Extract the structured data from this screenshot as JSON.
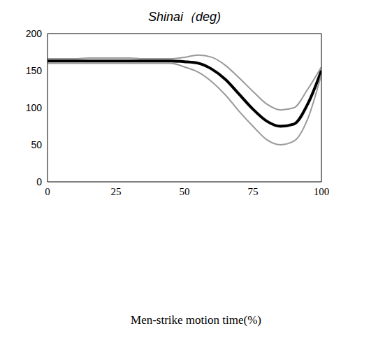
{
  "chart_data": {
    "type": "line",
    "title": "Shinai（deg)",
    "x_label": "Men-strike motion time(%)",
    "x": [
      0,
      5,
      10,
      15,
      20,
      25,
      30,
      35,
      40,
      45,
      50,
      55,
      60,
      65,
      70,
      75,
      80,
      85,
      90,
      95,
      100
    ],
    "series": [
      {
        "color": "#999999",
        "line_style": "solid",
        "values": [
          166,
          166,
          166,
          167,
          167,
          167,
          167,
          166,
          166,
          166,
          168,
          171,
          168,
          157,
          140,
          122,
          105,
          97,
          100,
          125,
          155
        ]
      },
      {
        "color": "#000000",
        "line_style": "solid",
        "values": [
          163,
          163,
          163,
          163,
          163,
          163,
          163,
          163,
          163,
          163,
          162,
          160,
          152,
          138,
          118,
          98,
          82,
          75,
          78,
          105,
          150
        ]
      },
      {
        "color": "#999999",
        "line_style": "solid",
        "values": [
          160,
          160,
          160,
          160,
          160,
          160,
          160,
          160,
          160,
          160,
          155,
          148,
          135,
          117,
          95,
          75,
          57,
          50,
          55,
          85,
          145
        ]
      }
    ],
    "xlim": [
      0,
      100
    ],
    "xticks": [
      0,
      25,
      50,
      75,
      100
    ],
    "ylim": [
      0,
      200
    ],
    "yticks": [
      0,
      50,
      100,
      150,
      200
    ],
    "grid": false
  }
}
